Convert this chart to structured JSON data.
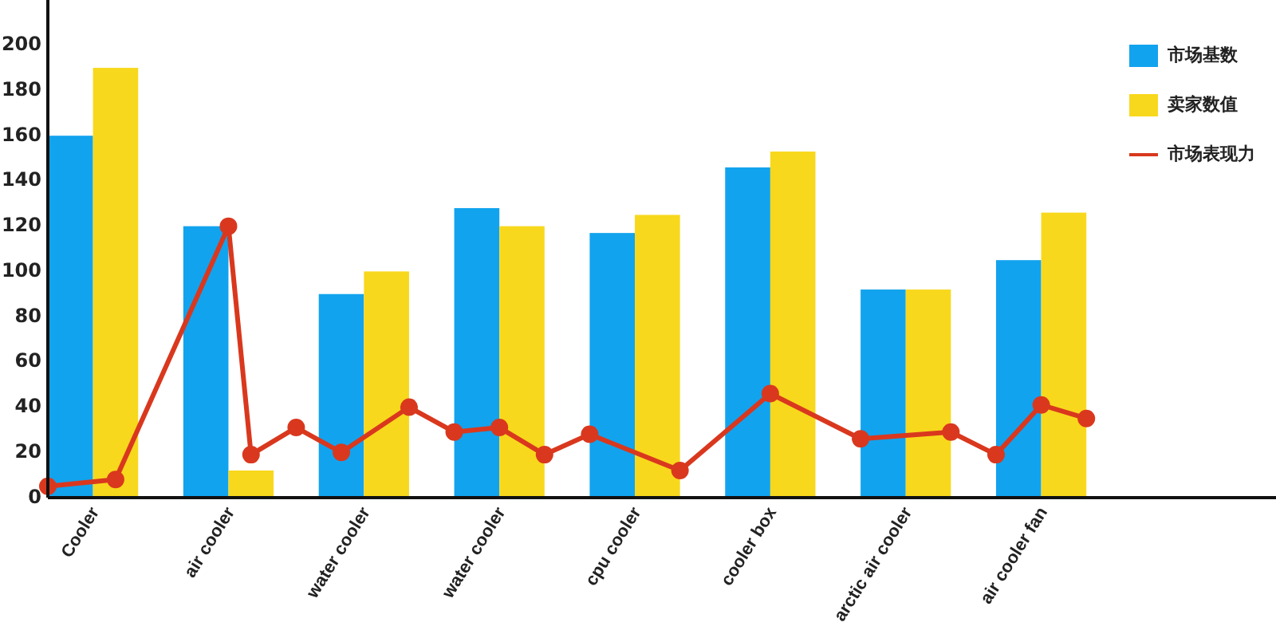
{
  "chart_data": {
    "type": "bar",
    "categories": [
      null,
      null,
      "Cooler",
      null,
      null,
      null,
      null,
      null,
      "air cooler",
      null,
      null,
      null,
      null,
      null,
      "water cooler",
      null,
      null,
      null,
      null,
      null,
      "water cooler",
      null,
      null,
      null,
      null,
      null,
      "cpu cooler",
      null,
      null,
      null,
      null,
      null,
      "cooler box",
      null,
      null,
      null,
      null,
      null,
      "arctic air cooler",
      null,
      null,
      null,
      null,
      null,
      "air cooler fan",
      null,
      null
    ],
    "ylim": [
      0,
      220
    ],
    "yticks": [
      0,
      20,
      40,
      60,
      80,
      100,
      120,
      140,
      160,
      180,
      200
    ],
    "legend": "top right",
    "series": [
      {
        "name": "市场基数",
        "color": "#12a3ee",
        "values": [
          null,
          160,
          null,
          null,
          null,
          null,
          null,
          120,
          null,
          null,
          null,
          null,
          null,
          90,
          null,
          null,
          null,
          null,
          null,
          128,
          null,
          null,
          null,
          null,
          null,
          117,
          null,
          null,
          null,
          null,
          null,
          146,
          null,
          null,
          null,
          null,
          null,
          92,
          null,
          null,
          null,
          null,
          null,
          105,
          null,
          null,
          null
        ]
      },
      {
        "name": "卖家数值",
        "color": "#f8d81c",
        "values": [
          null,
          null,
          null,
          190,
          null,
          null,
          null,
          null,
          null,
          12,
          null,
          null,
          null,
          null,
          null,
          100,
          null,
          null,
          null,
          null,
          null,
          120,
          null,
          null,
          null,
          null,
          null,
          125,
          null,
          null,
          null,
          null,
          null,
          153,
          null,
          null,
          null,
          null,
          null,
          92,
          null,
          null,
          null,
          null,
          null,
          126,
          null
        ]
      },
      {
        "name": "市场表现力",
        "type": "line",
        "color": "#d9381e",
        "marker": "circle",
        "values": [
          5,
          null,
          null,
          8,
          null,
          null,
          null,
          null,
          120,
          19,
          null,
          31,
          null,
          20,
          null,
          null,
          40,
          null,
          29,
          null,
          31,
          null,
          19,
          null,
          28,
          null,
          null,
          null,
          12,
          null,
          null,
          null,
          46,
          null,
          null,
          null,
          26,
          null,
          null,
          null,
          29,
          null,
          19,
          null,
          41,
          null,
          35
        ]
      }
    ]
  }
}
